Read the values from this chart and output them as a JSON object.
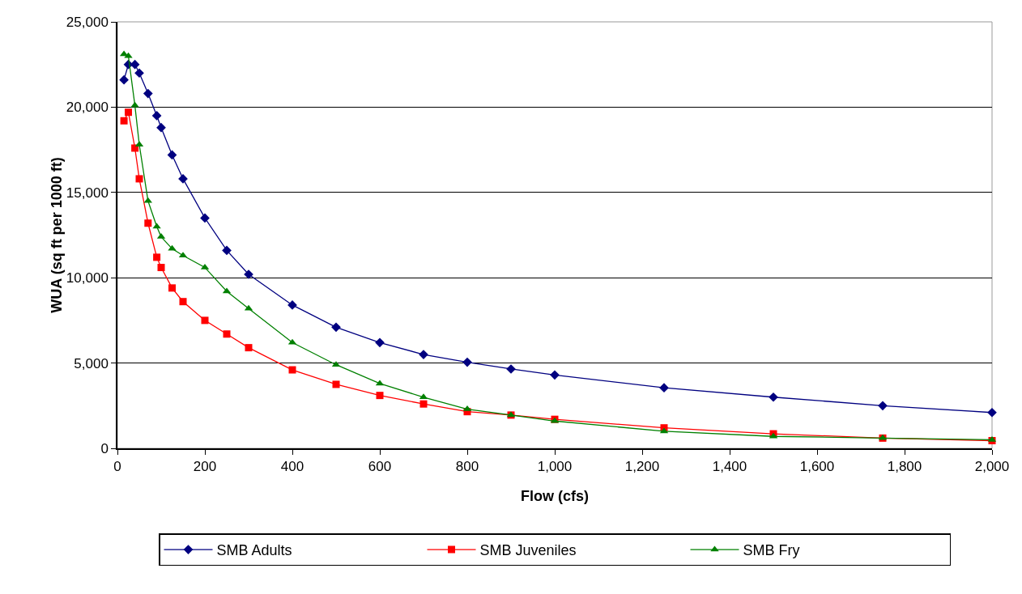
{
  "chart_data": {
    "type": "line",
    "xlabel": "Flow (cfs)",
    "ylabel": "WUA (sq ft per 1000 ft)",
    "x": [
      15,
      25,
      40,
      50,
      70,
      90,
      100,
      125,
      150,
      200,
      250,
      300,
      400,
      500,
      600,
      700,
      800,
      900,
      1000,
      1250,
      1500,
      1750,
      2000
    ],
    "series": [
      {
        "name": "SMB Adults",
        "color": "#000080",
        "marker": "diamond",
        "values": [
          21600,
          22500,
          22500,
          22000,
          20800,
          19500,
          18800,
          17200,
          15800,
          13500,
          11600,
          10200,
          8400,
          7100,
          6200,
          5500,
          5050,
          4650,
          4300,
          3550,
          3000,
          2500,
          2100
        ]
      },
      {
        "name": "SMB Juveniles",
        "color": "#ff0000",
        "marker": "square",
        "values": [
          19200,
          19700,
          17600,
          15800,
          13200,
          11200,
          10600,
          9400,
          8600,
          7500,
          6700,
          5900,
          4600,
          3750,
          3100,
          2600,
          2150,
          1950,
          1700,
          1200,
          850,
          600,
          450
        ]
      },
      {
        "name": "SMB Fry",
        "color": "#008000",
        "marker": "triangle",
        "values": [
          23100,
          23000,
          20100,
          17800,
          14500,
          13000,
          12400,
          11700,
          11300,
          10600,
          9200,
          8200,
          6200,
          4900,
          3800,
          3000,
          2300,
          1950,
          1600,
          1000,
          700,
          600,
          500
        ]
      }
    ],
    "xlim": [
      0,
      2000
    ],
    "xticks": [
      0,
      {
        "value": 200,
        "label": "200"
      },
      {
        "value": 400,
        "label": "400"
      },
      {
        "value": 600,
        "label": "600"
      },
      {
        "value": 800,
        "label": "800"
      },
      {
        "value": 1000,
        "label": "1,000"
      },
      {
        "value": 1200,
        "label": "1,200"
      },
      {
        "value": 1400,
        "label": "1,400"
      },
      {
        "value": 1600,
        "label": "1,600"
      },
      {
        "value": 1800,
        "label": "1,800"
      },
      {
        "value": 2000,
        "label": "2,000"
      }
    ],
    "ylim": [
      0,
      25000
    ],
    "yticks": [
      0,
      {
        "value": 5000,
        "label": "5,000"
      },
      {
        "value": 10000,
        "label": "10,000"
      },
      {
        "value": 15000,
        "label": "15,000"
      },
      {
        "value": 20000,
        "label": "20,000"
      },
      {
        "value": 25000,
        "label": "25,000"
      }
    ],
    "grid": "y",
    "legend": "bottom",
    "line_style": "solid"
  }
}
